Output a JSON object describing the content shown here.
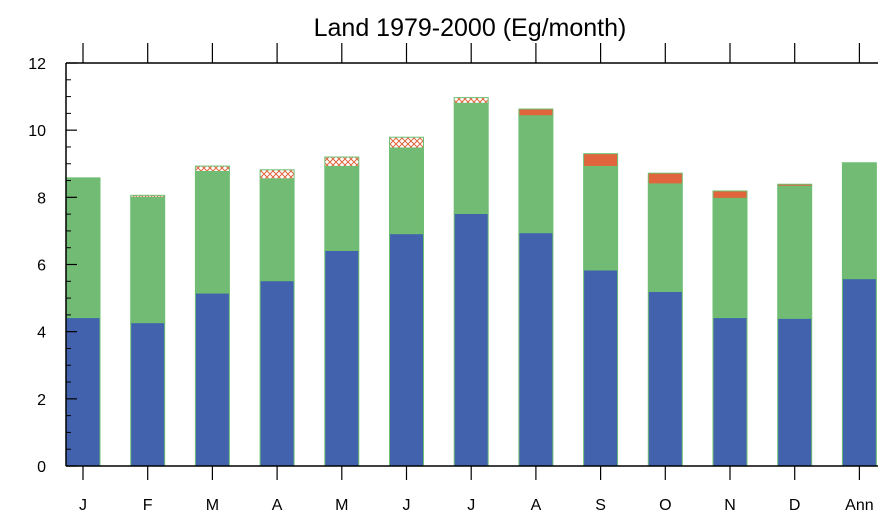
{
  "chart_data": {
    "type": "bar",
    "stacked": true,
    "title": "Land 1979-2000 (Eg/month)",
    "xlabel": "",
    "ylabel": "",
    "ylim": [
      0,
      12
    ],
    "yticks": [
      0,
      2,
      4,
      6,
      8,
      10,
      12
    ],
    "categories": [
      "J",
      "F",
      "M",
      "A",
      "M",
      "J",
      "J",
      "A",
      "S",
      "O",
      "N",
      "D",
      "Ann"
    ],
    "series": [
      {
        "color": "#4262ad",
        "fill": "solid",
        "values": [
          4.42,
          4.27,
          5.15,
          5.52,
          6.42,
          6.92,
          7.52,
          6.95,
          5.84,
          5.2,
          4.42,
          4.4,
          5.58
        ]
      },
      {
        "color": "#72bb75",
        "fill": "solid",
        "values": [
          4.16,
          3.73,
          3.62,
          3.03,
          2.5,
          2.55,
          3.28,
          3.48,
          3.08,
          3.2,
          3.55,
          3.93,
          3.45
        ]
      },
      {
        "color": "#e0643c",
        "fill": "solid",
        "values": [
          0.0,
          0.0,
          0.0,
          0.0,
          0.0,
          0.0,
          0.0,
          0.2,
          0.38,
          0.32,
          0.22,
          0.06,
          0.0
        ]
      },
      {
        "color": "#e0643c",
        "fill": "crosshatch",
        "values": [
          0.0,
          0.06,
          0.16,
          0.27,
          0.28,
          0.32,
          0.17,
          0.0,
          0.0,
          0.0,
          0.0,
          0.0,
          0.0
        ]
      }
    ],
    "grid": false,
    "colors": {
      "axis": "#000000",
      "bar_outline": "#6fbf73"
    }
  }
}
